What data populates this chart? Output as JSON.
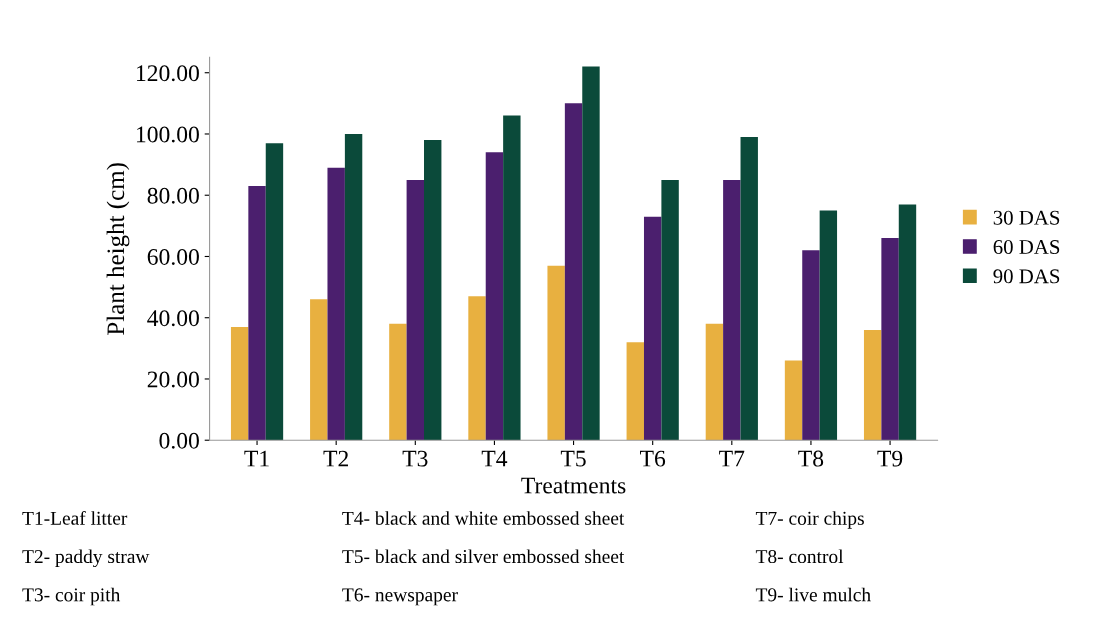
{
  "chart_data": {
    "type": "bar",
    "xlabel": "Treatments",
    "ylabel": "Plant height (cm)",
    "categories": [
      "T1",
      "T2",
      "T3",
      "T4",
      "T5",
      "T6",
      "T7",
      "T8",
      "T9"
    ],
    "series": [
      {
        "name": "30 DAS",
        "color": "#e8b040",
        "values": [
          37,
          46,
          38,
          47,
          57,
          32,
          38,
          26,
          36
        ]
      },
      {
        "name": "60 DAS",
        "color": "#4b1f6e",
        "values": [
          83,
          89,
          85,
          94,
          110,
          73,
          85,
          62,
          66
        ]
      },
      {
        "name": "90 DAS",
        "color": "#0b4a3a",
        "values": [
          97,
          100,
          98,
          106,
          122,
          85,
          99,
          75,
          77
        ]
      }
    ],
    "ylim": [
      0,
      125
    ],
    "yticks": [
      {
        "value": 0,
        "label": "0.00"
      },
      {
        "value": 20,
        "label": "20.00"
      },
      {
        "value": 40,
        "label": "40.00"
      },
      {
        "value": 60,
        "label": "60.00"
      },
      {
        "value": 80,
        "label": "80.00"
      },
      {
        "value": 100,
        "label": "100.00"
      },
      {
        "value": 120,
        "label": "120.00"
      }
    ],
    "grid": false,
    "legend": "right",
    "annotations": [
      "T1-Leaf litter",
      "T2- paddy straw",
      "T3- coir pith",
      "T4- black and white embossed sheet",
      "T5- black and silver embossed sheet",
      "T6- newspaper",
      "T7- coir chips",
      "T8- control",
      "T9- live mulch"
    ]
  }
}
